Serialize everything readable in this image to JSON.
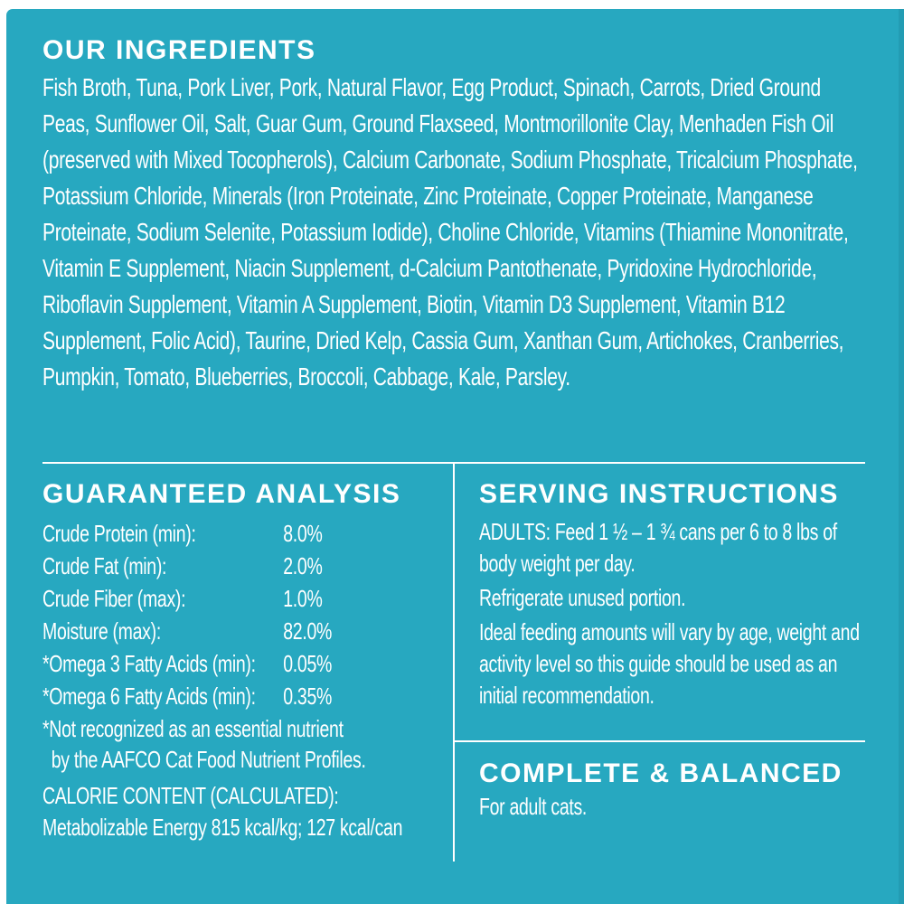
{
  "colors": {
    "background": "#27a8c0",
    "text": "#ffffff",
    "divider": "#ffffff"
  },
  "ingredients": {
    "title": "OUR INGREDIENTS",
    "text": "Fish Broth, Tuna, Pork Liver, Pork, Natural Flavor, Egg Product, Spinach, Carrots, Dried Ground Peas, Sunflower Oil, Salt, Guar Gum, Ground Flaxseed, Montmorillonite Clay, Menhaden Fish Oil (preserved with Mixed Tocopherols), Calcium Carbonate, Sodium Phosphate, Tricalcium Phosphate, Potassium Chloride, Minerals (Iron Proteinate, Zinc Proteinate, Copper Proteinate, Manganese Proteinate, Sodium Selenite, Potassium Iodide), Choline Chloride, Vitamins (Thiamine Mononitrate, Vitamin E Supplement, Niacin Supplement, d-Calcium Pantothenate, Pyridoxine Hydrochloride, Riboflavin Supplement, Vitamin A Supplement, Biotin, Vitamin D3 Supplement, Vitamin B12 Supplement, Folic Acid), Taurine, Dried Kelp, Cassia Gum, Xanthan Gum, Artichokes, Cranberries, Pumpkin, Tomato, Blueberries, Broccoli, Cabbage, Kale, Parsley."
  },
  "guaranteed_analysis": {
    "title": "GUARANTEED ANALYSIS",
    "rows": [
      {
        "label": "Crude Protein (min):",
        "value": "8.0%"
      },
      {
        "label": "Crude Fat (min):",
        "value": "2.0%"
      },
      {
        "label": "Crude Fiber (max):",
        "value": "1.0%"
      },
      {
        "label": "Moisture (max):",
        "value": "82.0%"
      },
      {
        "label": "*Omega 3 Fatty Acids (min):",
        "value": "0.05%"
      },
      {
        "label": "*Omega 6 Fatty Acids (min):",
        "value": "0.35%"
      }
    ],
    "footnote_line1": "*Not recognized as an essential nutrient",
    "footnote_line2": "by the AAFCO Cat Food Nutrient Profiles.",
    "calorie_heading": "CALORIE CONTENT (CALCULATED):",
    "calorie_value": "Metabolizable Energy 815 kcal/kg; 127 kcal/can"
  },
  "serving_instructions": {
    "title": "SERVING INSTRUCTIONS",
    "paragraphs": [
      "ADULTS: Feed 1 ½ – 1 ¾ cans per 6 to 8 lbs of body weight per day.",
      "Refrigerate unused portion.",
      "Ideal feeding amounts will vary by age, weight and activity level so this guide should be used as an initial recommendation."
    ]
  },
  "complete_balanced": {
    "title": "COMPLETE & BALANCED",
    "subtitle": "For adult cats."
  }
}
